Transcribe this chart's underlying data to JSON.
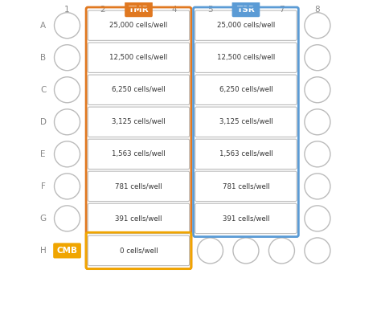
{
  "n_rows": 8,
  "n_cols": 8,
  "col_labels": [
    "1",
    "2",
    "TMR",
    "4",
    "5",
    "TSR",
    "7",
    "8"
  ],
  "row_labels": [
    "A",
    "B",
    "C",
    "D",
    "E",
    "F",
    "G",
    "H"
  ],
  "tmr_texts": [
    "25,000 cells/well",
    "12,500 cells/well",
    "6,250 cells/well",
    "3,125 cells/well",
    "1,563 cells/well",
    "781 cells/well",
    "391 cells/well",
    "0 cells/well"
  ],
  "tsr_texts": [
    "25,000 cells/well",
    "12,500 cells/well",
    "6,250 cells/well",
    "3,125 cells/well",
    "1,563 cells/well",
    "781 cells/well",
    "391 cells/well"
  ],
  "tmr_color": "#E07820",
  "tsr_color": "#5B9BD5",
  "cmb_color": "#F0A500",
  "circle_edge": "#BBBBBB",
  "circle_face": "#FFFFFF",
  "text_dark": "#333333",
  "label_color": "#888888",
  "bg_color": "#FFFFFF",
  "font_size_label": 7.5,
  "font_size_cell": 6.2,
  "font_size_badge": 7.5
}
